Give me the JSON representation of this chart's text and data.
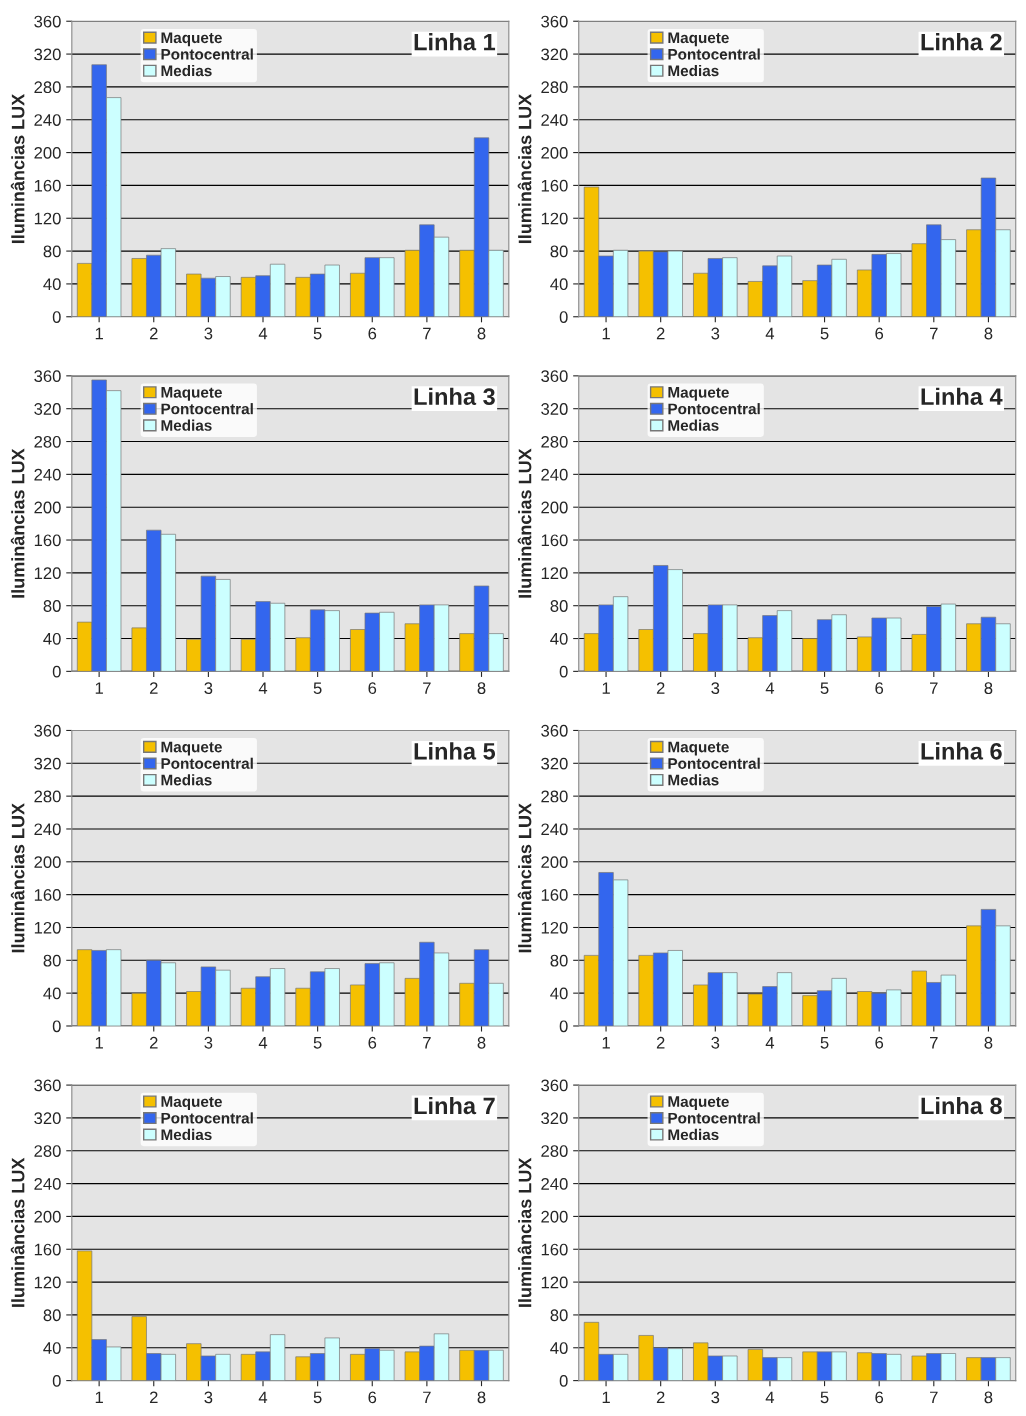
{
  "chart_data": [
    {
      "type": "bar",
      "title": "Linha 1",
      "ylabel": "Iluminâncias LUX",
      "categories": [
        "1",
        "2",
        "3",
        "4",
        "5",
        "6",
        "7",
        "8"
      ],
      "ylim": [
        0,
        360
      ],
      "yticks": [
        0,
        40,
        80,
        120,
        160,
        200,
        240,
        280,
        320,
        360
      ],
      "grid": "y",
      "legend": "top left",
      "series": [
        {
          "name": "Maquete",
          "color": "#f5c000",
          "values": [
            65,
            71,
            52,
            48,
            48,
            53,
            81,
            81
          ]
        },
        {
          "name": "Pontocentral",
          "color": "#3366ee",
          "values": [
            307,
            75,
            47,
            50,
            52,
            72,
            112,
            218
          ]
        },
        {
          "name": "Medias",
          "color": "#ccffff",
          "values": [
            267,
            83,
            49,
            64,
            63,
            72,
            97,
            81
          ]
        }
      ]
    },
    {
      "type": "bar",
      "title": "Linha 2",
      "ylabel": "Iluminâncias LUX",
      "categories": [
        "1",
        "2",
        "3",
        "4",
        "5",
        "6",
        "7",
        "8"
      ],
      "ylim": [
        0,
        360
      ],
      "yticks": [
        0,
        40,
        80,
        120,
        160,
        200,
        240,
        280,
        320,
        360
      ],
      "grid": "y",
      "legend": "top left",
      "series": [
        {
          "name": "Maquete",
          "color": "#f5c000",
          "values": [
            158,
            80,
            53,
            43,
            44,
            57,
            89,
            106
          ]
        },
        {
          "name": "Pontocentral",
          "color": "#3366ee",
          "values": [
            74,
            79,
            71,
            62,
            63,
            76,
            112,
            169
          ]
        },
        {
          "name": "Medias",
          "color": "#ccffff",
          "values": [
            81,
            80,
            72,
            74,
            70,
            77,
            94,
            106
          ]
        }
      ]
    },
    {
      "type": "bar",
      "title": "Linha 3",
      "ylabel": "Iluminâncias LUX",
      "categories": [
        "1",
        "2",
        "3",
        "4",
        "5",
        "6",
        "7",
        "8"
      ],
      "ylim": [
        0,
        360
      ],
      "yticks": [
        0,
        40,
        80,
        120,
        160,
        200,
        240,
        280,
        320,
        360
      ],
      "grid": "y",
      "legend": "top left",
      "series": [
        {
          "name": "Maquete",
          "color": "#f5c000",
          "values": [
            60,
            53,
            39,
            39,
            41,
            51,
            58,
            46
          ]
        },
        {
          "name": "Pontocentral",
          "color": "#3366ee",
          "values": [
            355,
            172,
            116,
            85,
            75,
            71,
            81,
            104
          ]
        },
        {
          "name": "Medias",
          "color": "#ccffff",
          "values": [
            342,
            167,
            112,
            83,
            74,
            72,
            81,
            46
          ]
        }
      ]
    },
    {
      "type": "bar",
      "title": "Linha 4",
      "ylabel": "Iluminâncias LUX",
      "categories": [
        "1",
        "2",
        "3",
        "4",
        "5",
        "6",
        "7",
        "8"
      ],
      "ylim": [
        0,
        360
      ],
      "yticks": [
        0,
        40,
        80,
        120,
        160,
        200,
        240,
        280,
        320,
        360
      ],
      "grid": "y",
      "legend": "top left",
      "series": [
        {
          "name": "Maquete",
          "color": "#f5c000",
          "values": [
            46,
            51,
            46,
            41,
            40,
            42,
            45,
            58
          ]
        },
        {
          "name": "Pontocentral",
          "color": "#3366ee",
          "values": [
            81,
            129,
            81,
            68,
            63,
            65,
            79,
            66
          ]
        },
        {
          "name": "Medias",
          "color": "#ccffff",
          "values": [
            91,
            124,
            81,
            74,
            69,
            65,
            82,
            58
          ]
        }
      ]
    },
    {
      "type": "bar",
      "title": "Linha 5",
      "ylabel": "Iluminâncias LUX",
      "categories": [
        "1",
        "2",
        "3",
        "4",
        "5",
        "6",
        "7",
        "8"
      ],
      "ylim": [
        0,
        360
      ],
      "yticks": [
        0,
        40,
        80,
        120,
        160,
        200,
        240,
        280,
        320,
        360
      ],
      "grid": "y",
      "legend": "top left",
      "series": [
        {
          "name": "Maquete",
          "color": "#f5c000",
          "values": [
            93,
            40,
            42,
            46,
            46,
            50,
            58,
            52
          ]
        },
        {
          "name": "Pontocentral",
          "color": "#3366ee",
          "values": [
            92,
            80,
            72,
            60,
            66,
            76,
            102,
            93
          ]
        },
        {
          "name": "Medias",
          "color": "#ccffff",
          "values": [
            93,
            77,
            68,
            70,
            70,
            77,
            89,
            52
          ]
        }
      ]
    },
    {
      "type": "bar",
      "title": "Linha 6",
      "ylabel": "Iluminâncias LUX",
      "categories": [
        "1",
        "2",
        "3",
        "4",
        "5",
        "6",
        "7",
        "8"
      ],
      "ylim": [
        0,
        360
      ],
      "yticks": [
        0,
        40,
        80,
        120,
        160,
        200,
        240,
        280,
        320,
        360
      ],
      "grid": "y",
      "legend": "top left",
      "series": [
        {
          "name": "Maquete",
          "color": "#f5c000",
          "values": [
            86,
            86,
            50,
            39,
            37,
            42,
            67,
            122
          ]
        },
        {
          "name": "Pontocentral",
          "color": "#3366ee",
          "values": [
            187,
            89,
            65,
            48,
            43,
            40,
            53,
            142
          ]
        },
        {
          "name": "Medias",
          "color": "#ccffff",
          "values": [
            178,
            92,
            65,
            65,
            58,
            44,
            62,
            122
          ]
        }
      ]
    },
    {
      "type": "bar",
      "title": "Linha 7",
      "ylabel": "Iluminâncias LUX",
      "categories": [
        "1",
        "2",
        "3",
        "4",
        "5",
        "6",
        "7",
        "8"
      ],
      "ylim": [
        0,
        360
      ],
      "yticks": [
        0,
        40,
        80,
        120,
        160,
        200,
        240,
        280,
        320,
        360
      ],
      "grid": "y",
      "legend": "top left",
      "series": [
        {
          "name": "Maquete",
          "color": "#f5c000",
          "values": [
            158,
            78,
            45,
            32,
            29,
            32,
            35,
            37
          ]
        },
        {
          "name": "Pontocentral",
          "color": "#3366ee",
          "values": [
            50,
            33,
            30,
            35,
            33,
            39,
            42,
            37
          ]
        },
        {
          "name": "Medias",
          "color": "#ccffff",
          "values": [
            41,
            32,
            32,
            56,
            52,
            37,
            57,
            37
          ]
        }
      ]
    },
    {
      "type": "bar",
      "title": "Linha 8",
      "ylabel": "Iluminâncias LUX",
      "categories": [
        "1",
        "2",
        "3",
        "4",
        "5",
        "6",
        "7",
        "8"
      ],
      "ylim": [
        0,
        360
      ],
      "yticks": [
        0,
        40,
        80,
        120,
        160,
        200,
        240,
        280,
        320,
        360
      ],
      "grid": "y",
      "legend": "top left",
      "series": [
        {
          "name": "Maquete",
          "color": "#f5c000",
          "values": [
            71,
            55,
            46,
            38,
            35,
            34,
            30,
            28
          ]
        },
        {
          "name": "Pontocentral",
          "color": "#3366ee",
          "values": [
            32,
            40,
            30,
            28,
            35,
            33,
            33,
            28
          ]
        },
        {
          "name": "Medias",
          "color": "#ccffff",
          "values": [
            32,
            39,
            30,
            28,
            35,
            32,
            33,
            28
          ]
        }
      ]
    }
  ]
}
